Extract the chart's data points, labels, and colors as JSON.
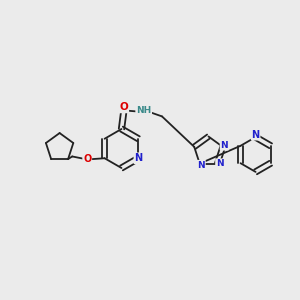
{
  "background_color": "#ebebeb",
  "bond_color": "#222222",
  "atom_colors": {
    "N": "#2020cc",
    "O": "#dd0000",
    "C": "#222222",
    "H": "#3a8a8a"
  },
  "figsize": [
    3.0,
    3.0
  ],
  "dpi": 100
}
